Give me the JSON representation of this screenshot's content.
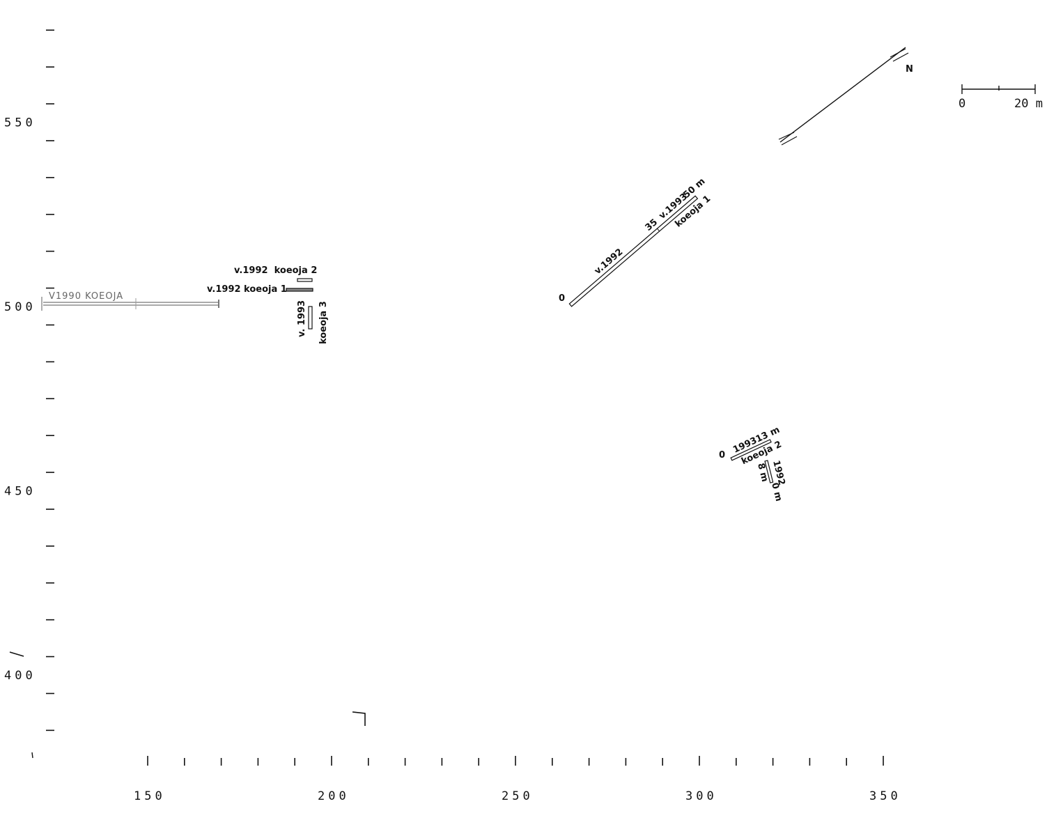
{
  "north_label": "N",
  "scale_bar": {
    "start_label": "0",
    "end_label": "20 m"
  },
  "y_axis": {
    "labels": [
      {
        "value": 550,
        "text": "550"
      },
      {
        "value": 500,
        "text": "500"
      },
      {
        "value": 450,
        "text": "450"
      },
      {
        "value": 400,
        "text": "400"
      }
    ]
  },
  "x_axis": {
    "labels": [
      {
        "value": 150,
        "text": "150"
      },
      {
        "value": 200,
        "text": "200"
      },
      {
        "value": 250,
        "text": "250"
      },
      {
        "value": 300,
        "text": "300"
      },
      {
        "value": 350,
        "text": "350"
      }
    ]
  },
  "handwritten_note": "V1990 KOEOJA",
  "left_group": {
    "koeoja2_label": "v.1992  koeoja 2",
    "koeoja1_label": "v.1992 koeoja 1",
    "v1993_label": "v. 1993",
    "koeoja3_label": "koeoja 3"
  },
  "diagonal_group": {
    "zero_label": "0",
    "v1992_label": "v.1992",
    "km35_label": "35",
    "v1993_label": "v.1993",
    "m50_label": "50 m",
    "koeoja1_label": "koeoja 1"
  },
  "small_group": {
    "zero_label": "0",
    "y1993_label": "1993",
    "m13_label": "13 m",
    "koeoja2_label": "koeoja 2",
    "m8_label": "8 m",
    "y1992_label": "1992",
    "m0_label": "0 m"
  }
}
